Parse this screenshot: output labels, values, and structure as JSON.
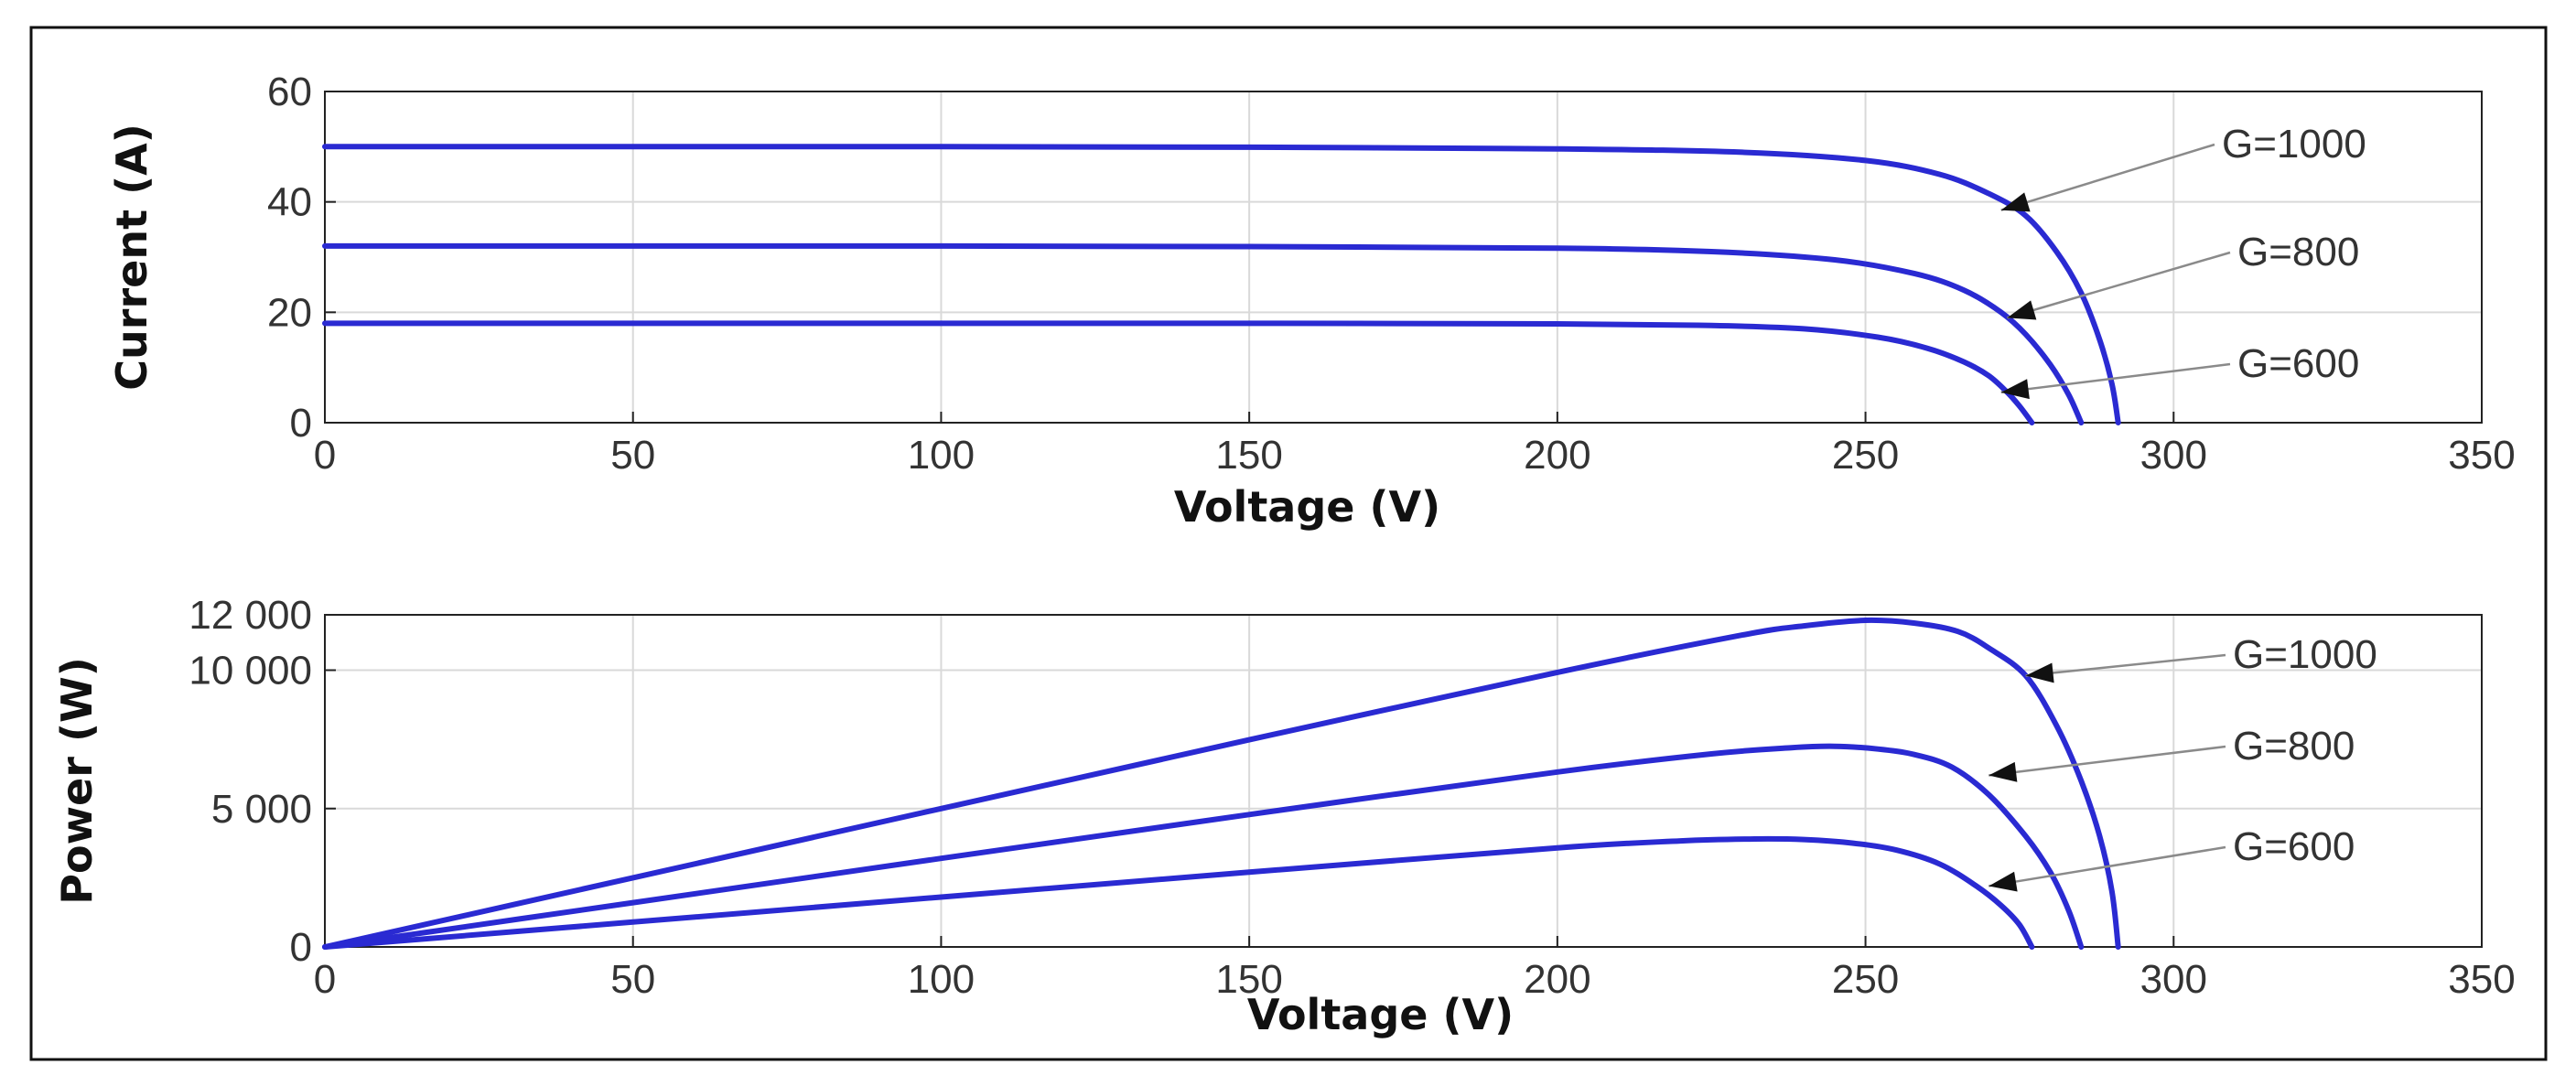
{
  "chart_data": [
    {
      "type": "line",
      "xlabel": "Voltage (V)",
      "ylabel": "Current (A)",
      "xlim": [
        0,
        350
      ],
      "ylim": [
        0,
        60
      ],
      "xticks": [
        0,
        50,
        100,
        150,
        200,
        250,
        300,
        350
      ],
      "xtick_labels": [
        "0",
        "50",
        "100",
        "150",
        "200",
        "250",
        "300",
        "350"
      ],
      "yticks": [
        0,
        20,
        40,
        60
      ],
      "ytick_labels": [
        "0",
        "20",
        "40",
        "60"
      ],
      "grid": true,
      "series": [
        {
          "name": "G=1000",
          "x": [
            0,
            50,
            100,
            150,
            200,
            230,
            250,
            262,
            270,
            276,
            281,
            285,
            288,
            290,
            291
          ],
          "y": [
            50,
            50,
            50,
            49.9,
            49.6,
            49.0,
            47.5,
            45.0,
            41.5,
            37.5,
            31.0,
            23.5,
            15.0,
            7.0,
            0
          ]
        },
        {
          "name": "G=800",
          "x": [
            0,
            50,
            100,
            150,
            200,
            225,
            245,
            258,
            266,
            272,
            276,
            280,
            283,
            285
          ],
          "y": [
            32,
            32,
            32,
            31.9,
            31.6,
            31.0,
            29.5,
            27.0,
            24.0,
            20.0,
            16.0,
            10.5,
            5.0,
            0
          ]
        },
        {
          "name": "G=600",
          "x": [
            0,
            50,
            100,
            150,
            200,
            225,
            240,
            252,
            260,
            266,
            270,
            273,
            275,
            277
          ],
          "y": [
            18,
            18,
            18,
            18,
            17.9,
            17.6,
            17.0,
            15.5,
            13.5,
            11.0,
            8.5,
            5.5,
            3.0,
            0
          ]
        }
      ],
      "annotations": [
        {
          "text": "G=1000",
          "target": [
            272,
            38.5
          ]
        },
        {
          "text": "G=800",
          "target": [
            273,
            19
          ]
        },
        {
          "text": "G=600",
          "target": [
            272,
            5.5
          ]
        }
      ]
    },
    {
      "type": "line",
      "xlabel": "Voltage (V)",
      "ylabel": "Power (W)",
      "xlim": [
        0,
        350
      ],
      "ylim": [
        0,
        12000
      ],
      "xticks": [
        0,
        50,
        100,
        150,
        200,
        250,
        300,
        350
      ],
      "xtick_labels": [
        "0",
        "50",
        "100",
        "150",
        "200",
        "250",
        "300",
        "350"
      ],
      "yticks": [
        0,
        5000,
        10000,
        12000
      ],
      "ytick_labels": [
        "0",
        "5 000",
        "10 000",
        "12 000"
      ],
      "grid": true,
      "series": [
        {
          "name": "G=1000",
          "x": [
            0,
            50,
            100,
            150,
            200,
            230,
            240,
            250,
            258,
            265,
            270,
            276,
            281,
            285,
            288,
            290,
            291
          ],
          "y": [
            0,
            2500,
            5000,
            7485,
            9920,
            11270,
            11600,
            11800,
            11700,
            11400,
            10800,
            9800,
            8000,
            6000,
            4000,
            2000,
            0
          ]
        },
        {
          "name": "G=800",
          "x": [
            0,
            50,
            100,
            150,
            200,
            225,
            238,
            245,
            252,
            258,
            264,
            270,
            276,
            280,
            283,
            285
          ],
          "y": [
            0,
            1600,
            3200,
            4785,
            6320,
            6975,
            7200,
            7250,
            7150,
            6950,
            6500,
            5500,
            4000,
            2700,
            1300,
            0
          ]
        },
        {
          "name": "G=600",
          "x": [
            0,
            50,
            100,
            150,
            200,
            220,
            232,
            240,
            248,
            255,
            262,
            268,
            272,
            275,
            277
          ],
          "y": [
            0,
            900,
            1800,
            2700,
            3580,
            3830,
            3900,
            3880,
            3750,
            3500,
            3000,
            2200,
            1500,
            800,
            0
          ]
        }
      ],
      "annotations": [
        {
          "text": "G=1000",
          "target": [
            276,
            9800
          ]
        },
        {
          "text": "G=800",
          "target": [
            270,
            6200
          ]
        },
        {
          "text": "G=600",
          "target": [
            270,
            2200
          ]
        }
      ]
    }
  ],
  "colors": {
    "curve": "#2a2ad2",
    "grid": "#d9d9d9",
    "arrow": "#8a8a8a",
    "text": "#333333"
  }
}
